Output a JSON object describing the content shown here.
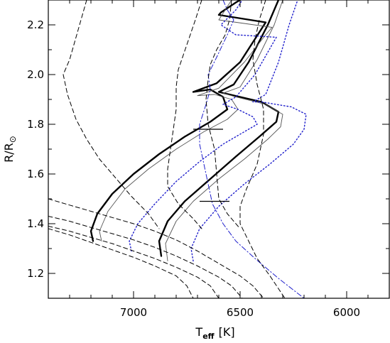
{
  "chart_data": {
    "type": "line",
    "xlabel": {
      "main": "T",
      "sub": "eff",
      "unit": "[K]"
    },
    "ylabel": {
      "main": "R/R",
      "symbol": "⊙"
    },
    "x_reversed": true,
    "xlim": [
      7400,
      5800
    ],
    "ylim": [
      1.1,
      2.3
    ],
    "x_ticks": [
      7000,
      6500,
      6000
    ],
    "x_tick_labels": [
      "7000",
      "6500",
      "6000"
    ],
    "y_ticks": [
      1.2,
      1.4,
      1.6,
      1.8,
      2.0,
      2.2
    ],
    "y_tick_labels": [
      "1.2",
      "1.4",
      "1.6",
      "1.8",
      "2.0",
      "2.2"
    ],
    "grid": false,
    "colors": {
      "black": "#000000",
      "blue": "#1f1fcc"
    },
    "series": [
      {
        "style": "thick-black",
        "points": [
          [
            7190,
            1.33
          ],
          [
            7200,
            1.37
          ],
          [
            7170,
            1.44
          ],
          [
            7100,
            1.52
          ],
          [
            7000,
            1.6
          ],
          [
            6880,
            1.68
          ],
          [
            6760,
            1.75
          ],
          [
            6640,
            1.81
          ],
          [
            6560,
            1.86
          ],
          [
            6580,
            1.91
          ],
          [
            6640,
            1.94
          ],
          [
            6720,
            1.93
          ],
          [
            6610,
            1.965
          ],
          [
            6500,
            2.05
          ],
          [
            6410,
            2.17
          ],
          [
            6380,
            2.21
          ],
          [
            6600,
            2.24
          ],
          [
            6590,
            2.25
          ],
          [
            6520,
            2.29
          ],
          [
            6500,
            2.3
          ]
        ]
      },
      {
        "style": "thick-black",
        "points": [
          [
            6870,
            1.27
          ],
          [
            6880,
            1.33
          ],
          [
            6840,
            1.41
          ],
          [
            6760,
            1.49
          ],
          [
            6640,
            1.58
          ],
          [
            6520,
            1.67
          ],
          [
            6410,
            1.75
          ],
          [
            6330,
            1.81
          ],
          [
            6320,
            1.85
          ],
          [
            6400,
            1.89
          ],
          [
            6550,
            1.92
          ],
          [
            6600,
            1.93
          ],
          [
            6530,
            1.96
          ],
          [
            6460,
            2.05
          ],
          [
            6370,
            2.2
          ],
          [
            6320,
            2.3
          ]
        ]
      },
      {
        "style": "thin-gray",
        "points": [
          [
            7150,
            1.33
          ],
          [
            7160,
            1.37
          ],
          [
            7120,
            1.45
          ],
          [
            7040,
            1.54
          ],
          [
            6930,
            1.62
          ],
          [
            6800,
            1.7
          ],
          [
            6670,
            1.77
          ],
          [
            6560,
            1.82
          ],
          [
            6510,
            1.86
          ],
          [
            6540,
            1.9
          ],
          [
            6620,
            1.92
          ],
          [
            6700,
            1.915
          ],
          [
            6600,
            1.945
          ],
          [
            6480,
            2.05
          ],
          [
            6380,
            2.16
          ],
          [
            6350,
            2.19
          ],
          [
            6600,
            2.22
          ],
          [
            6570,
            2.26
          ],
          [
            6540,
            2.3
          ]
        ]
      },
      {
        "style": "thin-gray",
        "points": [
          [
            6840,
            1.25
          ],
          [
            6850,
            1.32
          ],
          [
            6800,
            1.41
          ],
          [
            6720,
            1.49
          ],
          [
            6600,
            1.58
          ],
          [
            6480,
            1.66
          ],
          [
            6370,
            1.74
          ],
          [
            6310,
            1.79
          ],
          [
            6300,
            1.84
          ],
          [
            6380,
            1.88
          ],
          [
            6520,
            1.91
          ],
          [
            6580,
            1.925
          ],
          [
            6500,
            1.95
          ],
          [
            6420,
            2.06
          ],
          [
            6340,
            2.2
          ],
          [
            6300,
            2.3
          ]
        ]
      },
      {
        "style": "dotted-blue",
        "points": [
          [
            7010,
            1.29
          ],
          [
            7020,
            1.33
          ],
          [
            6980,
            1.4
          ],
          [
            6900,
            1.48
          ],
          [
            6800,
            1.57
          ],
          [
            6690,
            1.65
          ],
          [
            6580,
            1.72
          ],
          [
            6480,
            1.77
          ],
          [
            6420,
            1.8
          ],
          [
            6440,
            1.83
          ],
          [
            6510,
            1.86
          ],
          [
            6580,
            1.88
          ],
          [
            6520,
            1.91
          ],
          [
            6430,
            2.0
          ],
          [
            6350,
            2.12
          ],
          [
            6330,
            2.15
          ],
          [
            6520,
            2.16
          ],
          [
            6590,
            2.2
          ],
          [
            6520,
            2.26
          ],
          [
            6490,
            2.3
          ]
        ]
      },
      {
        "style": "dotted-blue",
        "points": [
          [
            6720,
            1.25
          ],
          [
            6730,
            1.3
          ],
          [
            6690,
            1.38
          ],
          [
            6600,
            1.47
          ],
          [
            6480,
            1.56
          ],
          [
            6360,
            1.64
          ],
          [
            6250,
            1.72
          ],
          [
            6200,
            1.78
          ],
          [
            6190,
            1.84
          ],
          [
            6260,
            1.87
          ],
          [
            6400,
            1.89
          ],
          [
            6440,
            1.89
          ],
          [
            6380,
            1.92
          ],
          [
            6320,
            2.05
          ],
          [
            6270,
            2.2
          ],
          [
            6230,
            2.3
          ]
        ]
      },
      {
        "style": "dashdot-blue",
        "points": [
          [
            6580,
            2.3
          ],
          [
            6560,
            2.26
          ],
          [
            6530,
            2.22
          ],
          [
            6560,
            2.16
          ],
          [
            6610,
            2.07
          ],
          [
            6650,
            2.0
          ],
          [
            6640,
            1.94
          ],
          [
            6660,
            1.88
          ],
          [
            6690,
            1.8
          ],
          [
            6690,
            1.72
          ],
          [
            6670,
            1.64
          ],
          [
            6650,
            1.56
          ],
          [
            6630,
            1.48
          ],
          [
            6580,
            1.4
          ],
          [
            6520,
            1.33
          ],
          [
            6430,
            1.26
          ],
          [
            6320,
            1.18
          ],
          [
            6200,
            1.1
          ]
        ]
      },
      {
        "style": "dashed-black",
        "points": [
          [
            7220,
            2.3
          ],
          [
            7260,
            2.18
          ],
          [
            7300,
            2.06
          ],
          [
            7330,
            2.0
          ],
          [
            7310,
            1.92
          ],
          [
            7270,
            1.82
          ],
          [
            7220,
            1.74
          ],
          [
            7160,
            1.66
          ],
          [
            7090,
            1.59
          ],
          [
            7010,
            1.51
          ],
          [
            6930,
            1.44
          ],
          [
            6880,
            1.38
          ]
        ]
      },
      {
        "style": "dashed-black",
        "points": [
          [
            6680,
            2.3
          ],
          [
            6710,
            2.22
          ],
          [
            6750,
            2.12
          ],
          [
            6790,
            2.02
          ],
          [
            6800,
            1.95
          ],
          [
            6800,
            1.86
          ],
          [
            6820,
            1.74
          ],
          [
            6840,
            1.62
          ],
          [
            6840,
            1.55
          ],
          [
            6790,
            1.48
          ],
          [
            6720,
            1.42
          ],
          [
            6680,
            1.38
          ]
        ]
      },
      {
        "style": "dashed-black",
        "points": [
          [
            6540,
            2.3
          ],
          [
            6550,
            2.22
          ],
          [
            6570,
            2.16
          ],
          [
            6610,
            2.1
          ],
          [
            6640,
            2.04
          ],
          [
            6650,
            1.98
          ],
          [
            6660,
            1.9
          ],
          [
            6650,
            1.8
          ],
          [
            6620,
            1.7
          ],
          [
            6610,
            1.6
          ],
          [
            6600,
            1.5
          ],
          [
            6560,
            1.44
          ],
          [
            6500,
            1.38
          ]
        ]
      },
      {
        "style": "dashed-black",
        "points": [
          [
            6380,
            2.3
          ],
          [
            6410,
            2.22
          ],
          [
            6430,
            2.14
          ],
          [
            6440,
            2.06
          ],
          [
            6420,
            1.96
          ],
          [
            6390,
            1.86
          ],
          [
            6390,
            1.76
          ],
          [
            6420,
            1.64
          ],
          [
            6470,
            1.54
          ],
          [
            6500,
            1.47
          ],
          [
            6500,
            1.4
          ],
          [
            6460,
            1.33
          ],
          [
            6420,
            1.26
          ],
          [
            6360,
            1.19
          ],
          [
            6290,
            1.1
          ]
        ]
      },
      {
        "style": "dashed-black",
        "points": [
          [
            7400,
            1.5
          ],
          [
            7300,
            1.475
          ],
          [
            7200,
            1.45
          ],
          [
            7100,
            1.425
          ],
          [
            7000,
            1.4
          ],
          [
            6900,
            1.37
          ],
          [
            6800,
            1.335
          ],
          [
            6700,
            1.29
          ],
          [
            6600,
            1.24
          ],
          [
            6500,
            1.19
          ],
          [
            6440,
            1.15
          ],
          [
            6390,
            1.1
          ]
        ]
      },
      {
        "style": "dashed-black",
        "points": [
          [
            7400,
            1.43
          ],
          [
            7300,
            1.41
          ],
          [
            7200,
            1.385
          ],
          [
            7100,
            1.36
          ],
          [
            7000,
            1.335
          ],
          [
            6900,
            1.305
          ],
          [
            6800,
            1.27
          ],
          [
            6700,
            1.23
          ],
          [
            6600,
            1.185
          ],
          [
            6540,
            1.15
          ],
          [
            6490,
            1.1
          ]
        ]
      },
      {
        "style": "dashed-black",
        "points": [
          [
            7400,
            1.39
          ],
          [
            7300,
            1.37
          ],
          [
            7200,
            1.345
          ],
          [
            7100,
            1.32
          ],
          [
            7000,
            1.29
          ],
          [
            6900,
            1.26
          ],
          [
            6800,
            1.225
          ],
          [
            6700,
            1.185
          ],
          [
            6640,
            1.15
          ],
          [
            6600,
            1.1
          ]
        ]
      },
      {
        "style": "dashed-black",
        "points": [
          [
            7400,
            1.38
          ],
          [
            7300,
            1.355
          ],
          [
            7200,
            1.325
          ],
          [
            7100,
            1.295
          ],
          [
            7000,
            1.265
          ],
          [
            6900,
            1.23
          ],
          [
            6800,
            1.19
          ],
          [
            6750,
            1.15
          ],
          [
            6720,
            1.1
          ]
        ]
      }
    ],
    "error_bars": [
      {
        "x": 6650,
        "y": 1.78,
        "x_err": 70
      },
      {
        "x": 6620,
        "y": 1.49,
        "x_err": 70
      }
    ]
  }
}
